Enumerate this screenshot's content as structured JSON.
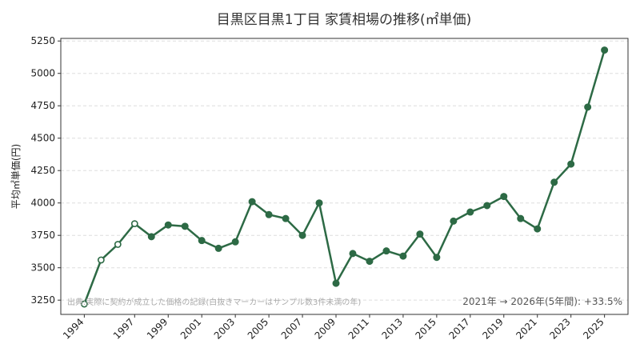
{
  "chart_data": {
    "type": "line",
    "title": "目黒区目黒1丁目 家賃相場の推移(㎡単価)",
    "xlabel": "",
    "ylabel": "平均㎡単価(円)",
    "xlim": [
      1992.6,
      2026.4
    ],
    "ylim": [
      3140,
      5270
    ],
    "x_ticks": [
      1994,
      1997,
      1999,
      2001,
      2003,
      2005,
      2007,
      2009,
      2011,
      2013,
      2015,
      2017,
      2019,
      2021,
      2023,
      2025
    ],
    "y_ticks": [
      3250,
      3500,
      3750,
      4000,
      4250,
      4500,
      4750,
      5000,
      5250
    ],
    "grid": "y-dashed",
    "line_color": "#2d6a45",
    "series": [
      {
        "x": [
          1994,
          1995,
          1996,
          1997,
          1998,
          1999,
          2000,
          2001,
          2002,
          2003,
          2004,
          2005,
          2006,
          2007,
          2008,
          2009,
          2010,
          2011,
          2012,
          2013,
          2014,
          2015,
          2016,
          2017,
          2018,
          2019,
          2020,
          2021,
          2022,
          2023,
          2024,
          2025
        ],
        "values": [
          3220,
          3560,
          3680,
          3840,
          3740,
          3830,
          3820,
          3710,
          3650,
          3700,
          4010,
          3910,
          3880,
          3750,
          4000,
          3380,
          3610,
          3550,
          3630,
          3590,
          3760,
          3580,
          3860,
          3930,
          3980,
          4050,
          3880,
          3800,
          4160,
          4300,
          4740,
          5180
        ],
        "hollow_x": [
          1994,
          1995,
          1996,
          1997
        ]
      }
    ],
    "footnote": "出典:実際に契約が成立した価格の記録(白抜きマーカーはサンプル数3件未満の年)",
    "annotation": "2021年 → 2026年(5年間): +33.5%"
  }
}
